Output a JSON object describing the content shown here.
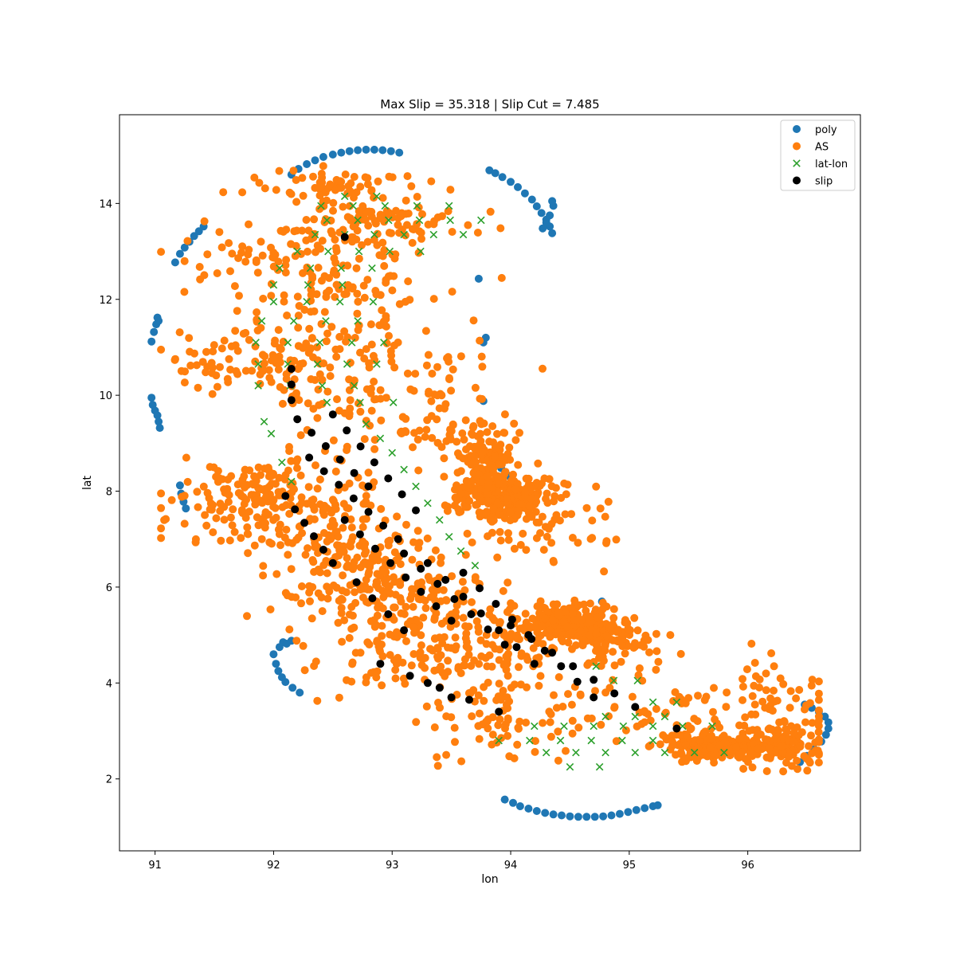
{
  "chart_data": {
    "type": "scatter",
    "title": "Max Slip = 35.318  |  Slip Cut =  7.485",
    "xlabel": "lon",
    "ylabel": "lat",
    "xlim": [
      90.7,
      96.95
    ],
    "ylim": [
      0.5,
      15.85
    ],
    "xticks": [
      91,
      92,
      93,
      94,
      95,
      96
    ],
    "yticks": [
      2,
      4,
      6,
      8,
      10,
      12,
      14
    ],
    "grid": false,
    "legend_position": "top-right",
    "series": [
      {
        "name": "poly",
        "marker": "circle",
        "color": "#1f77b4",
        "x": [
          92.15,
          92.21,
          92.28,
          92.35,
          92.42,
          92.5,
          92.57,
          92.64,
          92.71,
          92.78,
          92.85,
          92.92,
          92.99,
          93.06,
          91.17,
          91.21,
          91.25,
          91.29,
          91.33,
          91.37,
          91.41,
          90.97,
          90.99,
          91.01,
          91.02,
          91.03,
          90.97,
          90.98,
          91.0,
          91.02,
          91.03,
          91.04,
          91.21,
          91.22,
          91.24,
          91.26,
          93.82,
          93.87,
          93.93,
          94.0,
          94.06,
          94.12,
          94.18,
          94.22,
          94.26,
          94.3,
          94.33,
          94.35,
          94.36,
          94.35,
          94.33,
          94.3,
          94.27,
          93.73,
          93.77,
          93.79,
          93.77,
          93.8,
          93.86,
          93.92,
          93.98,
          92.0,
          92.02,
          92.04,
          92.07,
          92.1,
          92.16,
          92.22,
          92.05,
          92.08,
          92.11,
          92.15,
          94.77,
          93.95,
          94.02,
          94.08,
          94.15,
          94.22,
          94.29,
          94.36,
          94.43,
          94.5,
          94.57,
          94.64,
          94.71,
          94.78,
          94.85,
          94.92,
          94.99,
          95.06,
          95.13,
          95.2,
          95.24,
          96.48,
          96.54,
          96.6,
          96.65,
          96.68,
          96.68,
          96.66,
          96.62,
          96.56,
          96.5,
          96.44
        ],
        "y": [
          14.6,
          14.72,
          14.82,
          14.9,
          14.97,
          15.02,
          15.06,
          15.09,
          15.11,
          15.12,
          15.12,
          15.11,
          15.09,
          15.06,
          12.77,
          12.95,
          13.08,
          13.2,
          13.32,
          13.42,
          13.52,
          11.12,
          11.32,
          11.48,
          11.62,
          11.55,
          9.95,
          9.8,
          9.68,
          9.58,
          9.45,
          9.32,
          8.12,
          7.95,
          7.78,
          7.64,
          14.69,
          14.63,
          14.55,
          14.45,
          14.34,
          14.21,
          14.08,
          13.94,
          13.8,
          13.66,
          13.52,
          13.38,
          13.95,
          14.05,
          13.75,
          13.6,
          13.48,
          12.43,
          11.1,
          11.2,
          9.88,
          8.66,
          8.6,
          8.48,
          8.32,
          4.6,
          4.4,
          4.25,
          4.12,
          4.02,
          3.9,
          3.8,
          4.75,
          4.85,
          4.82,
          4.88,
          5.7,
          1.57,
          1.5,
          1.43,
          1.38,
          1.33,
          1.29,
          1.26,
          1.24,
          1.22,
          1.21,
          1.21,
          1.21,
          1.22,
          1.24,
          1.27,
          1.31,
          1.35,
          1.39,
          1.43,
          1.45,
          3.55,
          3.48,
          3.4,
          3.3,
          3.18,
          3.05,
          2.92,
          2.78,
          2.62,
          2.48,
          2.35
        ]
      },
      {
        "name": "AS",
        "marker": "circle",
        "color": "#ff7f0e",
        "clusters": [
          {
            "cx": 92.5,
            "cy": 14.4,
            "sx": 0.35,
            "sy": 0.18,
            "n": 60
          },
          {
            "cx": 92.95,
            "cy": 13.7,
            "sx": 0.35,
            "sy": 0.25,
            "n": 90
          },
          {
            "cx": 92.45,
            "cy": 12.9,
            "sx": 0.4,
            "sy": 0.4,
            "n": 80
          },
          {
            "cx": 91.75,
            "cy": 12.8,
            "sx": 0.3,
            "sy": 0.4,
            "n": 30
          },
          {
            "cx": 92.4,
            "cy": 11.8,
            "sx": 0.35,
            "sy": 0.5,
            "n": 60
          },
          {
            "cx": 91.7,
            "cy": 10.7,
            "sx": 0.3,
            "sy": 0.35,
            "n": 60
          },
          {
            "cx": 92.3,
            "cy": 10.6,
            "sx": 0.45,
            "sy": 0.5,
            "n": 80
          },
          {
            "cx": 93.0,
            "cy": 10.4,
            "sx": 0.5,
            "sy": 0.8,
            "n": 80
          },
          {
            "cx": 93.3,
            "cy": 9.3,
            "sx": 0.35,
            "sy": 0.3,
            "n": 40
          },
          {
            "cx": 93.75,
            "cy": 8.6,
            "sx": 0.15,
            "sy": 0.45,
            "n": 120
          },
          {
            "cx": 93.95,
            "cy": 7.9,
            "sx": 0.18,
            "sy": 0.28,
            "n": 220
          },
          {
            "cx": 94.2,
            "cy": 7.4,
            "sx": 0.35,
            "sy": 0.45,
            "n": 60
          },
          {
            "cx": 91.9,
            "cy": 7.9,
            "sx": 0.25,
            "sy": 0.3,
            "n": 100
          },
          {
            "cx": 91.6,
            "cy": 7.5,
            "sx": 0.35,
            "sy": 0.5,
            "n": 40
          },
          {
            "cx": 92.3,
            "cy": 7.5,
            "sx": 0.35,
            "sy": 0.6,
            "n": 120
          },
          {
            "cx": 92.7,
            "cy": 6.5,
            "sx": 0.35,
            "sy": 0.55,
            "n": 120
          },
          {
            "cx": 93.1,
            "cy": 5.8,
            "sx": 0.35,
            "sy": 0.5,
            "n": 120
          },
          {
            "cx": 93.3,
            "cy": 4.8,
            "sx": 0.35,
            "sy": 0.55,
            "n": 90
          },
          {
            "cx": 92.7,
            "cy": 4.5,
            "sx": 0.35,
            "sy": 0.5,
            "n": 30
          },
          {
            "cx": 93.9,
            "cy": 4.5,
            "sx": 0.3,
            "sy": 0.6,
            "n": 80
          },
          {
            "cx": 94.1,
            "cy": 3.3,
            "sx": 0.4,
            "sy": 0.45,
            "n": 80
          },
          {
            "cx": 94.4,
            "cy": 5.3,
            "sx": 0.18,
            "sy": 0.16,
            "n": 120
          },
          {
            "cx": 94.7,
            "cy": 5.1,
            "sx": 0.18,
            "sy": 0.2,
            "n": 100
          },
          {
            "cx": 94.95,
            "cy": 4.8,
            "sx": 0.2,
            "sy": 0.25,
            "n": 60
          },
          {
            "cx": 95.3,
            "cy": 3.6,
            "sx": 0.45,
            "sy": 0.5,
            "n": 60
          },
          {
            "cx": 95.65,
            "cy": 2.7,
            "sx": 0.2,
            "sy": 0.13,
            "n": 110
          },
          {
            "cx": 96.1,
            "cy": 2.65,
            "sx": 0.25,
            "sy": 0.2,
            "n": 150
          },
          {
            "cx": 96.25,
            "cy": 3.7,
            "sx": 0.3,
            "sy": 0.4,
            "n": 40
          },
          {
            "cx": 96.4,
            "cy": 2.9,
            "sx": 0.2,
            "sy": 0.3,
            "n": 40
          }
        ]
      },
      {
        "name": "lat-lon",
        "marker": "x",
        "color": "#2ca02c",
        "rows": [
          {
            "y": 14.15,
            "x0": 92.6,
            "dx": 0.27,
            "n": 2
          },
          {
            "y": 13.95,
            "x0": 92.4,
            "dx": 0.27,
            "n": 5
          },
          {
            "y": 13.65,
            "x0": 92.45,
            "dx": 0.26,
            "n": 6
          },
          {
            "y": 13.35,
            "x0": 92.35,
            "dx": 0.25,
            "n": 6
          },
          {
            "y": 13.0,
            "x0": 92.2,
            "dx": 0.26,
            "n": 5
          },
          {
            "y": 12.65,
            "x0": 92.05,
            "dx": 0.26,
            "n": 4
          },
          {
            "y": 12.3,
            "x0": 92.0,
            "dx": 0.29,
            "n": 3
          },
          {
            "y": 11.95,
            "x0": 92.0,
            "dx": 0.28,
            "n": 4
          },
          {
            "y": 11.55,
            "x0": 91.9,
            "dx": 0.27,
            "n": 4
          },
          {
            "y": 11.1,
            "x0": 91.85,
            "dx": 0.27,
            "n": 5
          },
          {
            "y": 10.65,
            "x0": 91.87,
            "dx": 0.25,
            "n": 5
          },
          {
            "y": 10.2,
            "x0": 91.87,
            "dx": 0.27,
            "n": 4
          },
          {
            "y": 9.85,
            "x0": 92.45,
            "dx": 0.28,
            "n": 3
          },
          {
            "y": 9.45,
            "x0": 91.92,
            "dx": 0.3,
            "n": 1
          },
          {
            "y": 9.2,
            "x0": 91.98,
            "dx": 0.3,
            "n": 1
          },
          {
            "y": 9.4,
            "x0": 92.78,
            "dx": 0.3,
            "n": 1
          },
          {
            "y": 9.1,
            "x0": 92.9,
            "dx": 0.3,
            "n": 1
          },
          {
            "y": 8.8,
            "x0": 93.0,
            "dx": 0.3,
            "n": 1
          },
          {
            "y": 8.45,
            "x0": 93.1,
            "dx": 0.3,
            "n": 1
          },
          {
            "y": 8.1,
            "x0": 93.2,
            "dx": 0.3,
            "n": 1
          },
          {
            "y": 7.75,
            "x0": 93.3,
            "dx": 0.3,
            "n": 1
          },
          {
            "y": 7.4,
            "x0": 93.4,
            "dx": 0.3,
            "n": 1
          },
          {
            "y": 7.05,
            "x0": 93.48,
            "dx": 0.3,
            "n": 1
          },
          {
            "y": 6.75,
            "x0": 93.58,
            "dx": 0.3,
            "n": 1
          },
          {
            "y": 6.45,
            "x0": 93.7,
            "dx": 0.3,
            "n": 1
          },
          {
            "y": 8.6,
            "x0": 92.07,
            "dx": 0.3,
            "n": 1
          },
          {
            "y": 8.2,
            "x0": 92.15,
            "dx": 0.3,
            "n": 1
          },
          {
            "y": 4.35,
            "x0": 94.72,
            "dx": 0.3,
            "n": 1
          },
          {
            "y": 4.05,
            "x0": 94.87,
            "dx": 0.2,
            "n": 2
          },
          {
            "y": 3.6,
            "x0": 95.2,
            "dx": 0.2,
            "n": 2
          },
          {
            "y": 3.3,
            "x0": 94.8,
            "dx": 0.25,
            "n": 3
          },
          {
            "y": 3.1,
            "x0": 94.2,
            "dx": 0.25,
            "n": 7
          },
          {
            "y": 2.8,
            "x0": 93.9,
            "dx": 0.26,
            "n": 6
          },
          {
            "y": 2.55,
            "x0": 94.3,
            "dx": 0.25,
            "n": 7
          },
          {
            "y": 2.25,
            "x0": 94.5,
            "dx": 0.25,
            "n": 2
          }
        ]
      },
      {
        "name": "slip",
        "marker": "circle",
        "color": "#000000",
        "lines": [
          {
            "x0": 92.6,
            "y0": 13.3,
            "x1": 92.6,
            "y1": 13.3,
            "n": 1
          },
          {
            "x0": 92.15,
            "y0": 10.55,
            "x1": 92.15,
            "y1": 9.9,
            "n": 3
          },
          {
            "x0": 92.2,
            "y0": 9.5,
            "x1": 92.8,
            "y1": 8.1,
            "n": 6
          },
          {
            "x0": 92.1,
            "y0": 7.9,
            "x1": 92.5,
            "y1": 6.5,
            "n": 6
          },
          {
            "x0": 92.3,
            "y0": 8.7,
            "x1": 93.05,
            "y1": 7.0,
            "n": 7
          },
          {
            "x0": 92.5,
            "y0": 9.6,
            "x1": 93.2,
            "y1": 7.6,
            "n": 7
          },
          {
            "x0": 92.6,
            "y0": 7.4,
            "x1": 93.5,
            "y1": 5.3,
            "n": 8
          },
          {
            "x0": 92.7,
            "y0": 6.1,
            "x1": 93.1,
            "y1": 5.1,
            "n": 4
          },
          {
            "x0": 93.1,
            "y0": 6.7,
            "x1": 93.95,
            "y1": 4.8,
            "n": 7
          },
          {
            "x0": 93.3,
            "y0": 6.5,
            "x1": 94.2,
            "y1": 4.4,
            "n": 7
          },
          {
            "x0": 93.6,
            "y0": 6.3,
            "x1": 94.7,
            "y1": 3.7,
            "n": 9
          },
          {
            "x0": 92.9,
            "y0": 4.4,
            "x1": 93.9,
            "y1": 3.4,
            "n": 5
          },
          {
            "x0": 94.0,
            "y0": 5.2,
            "x1": 95.05,
            "y1": 3.5,
            "n": 7
          },
          {
            "x0": 93.3,
            "y0": 4.0,
            "x1": 93.5,
            "y1": 3.7,
            "n": 2
          },
          {
            "x0": 95.4,
            "y0": 3.05,
            "x1": 95.4,
            "y1": 3.05,
            "n": 1
          }
        ]
      }
    ]
  }
}
